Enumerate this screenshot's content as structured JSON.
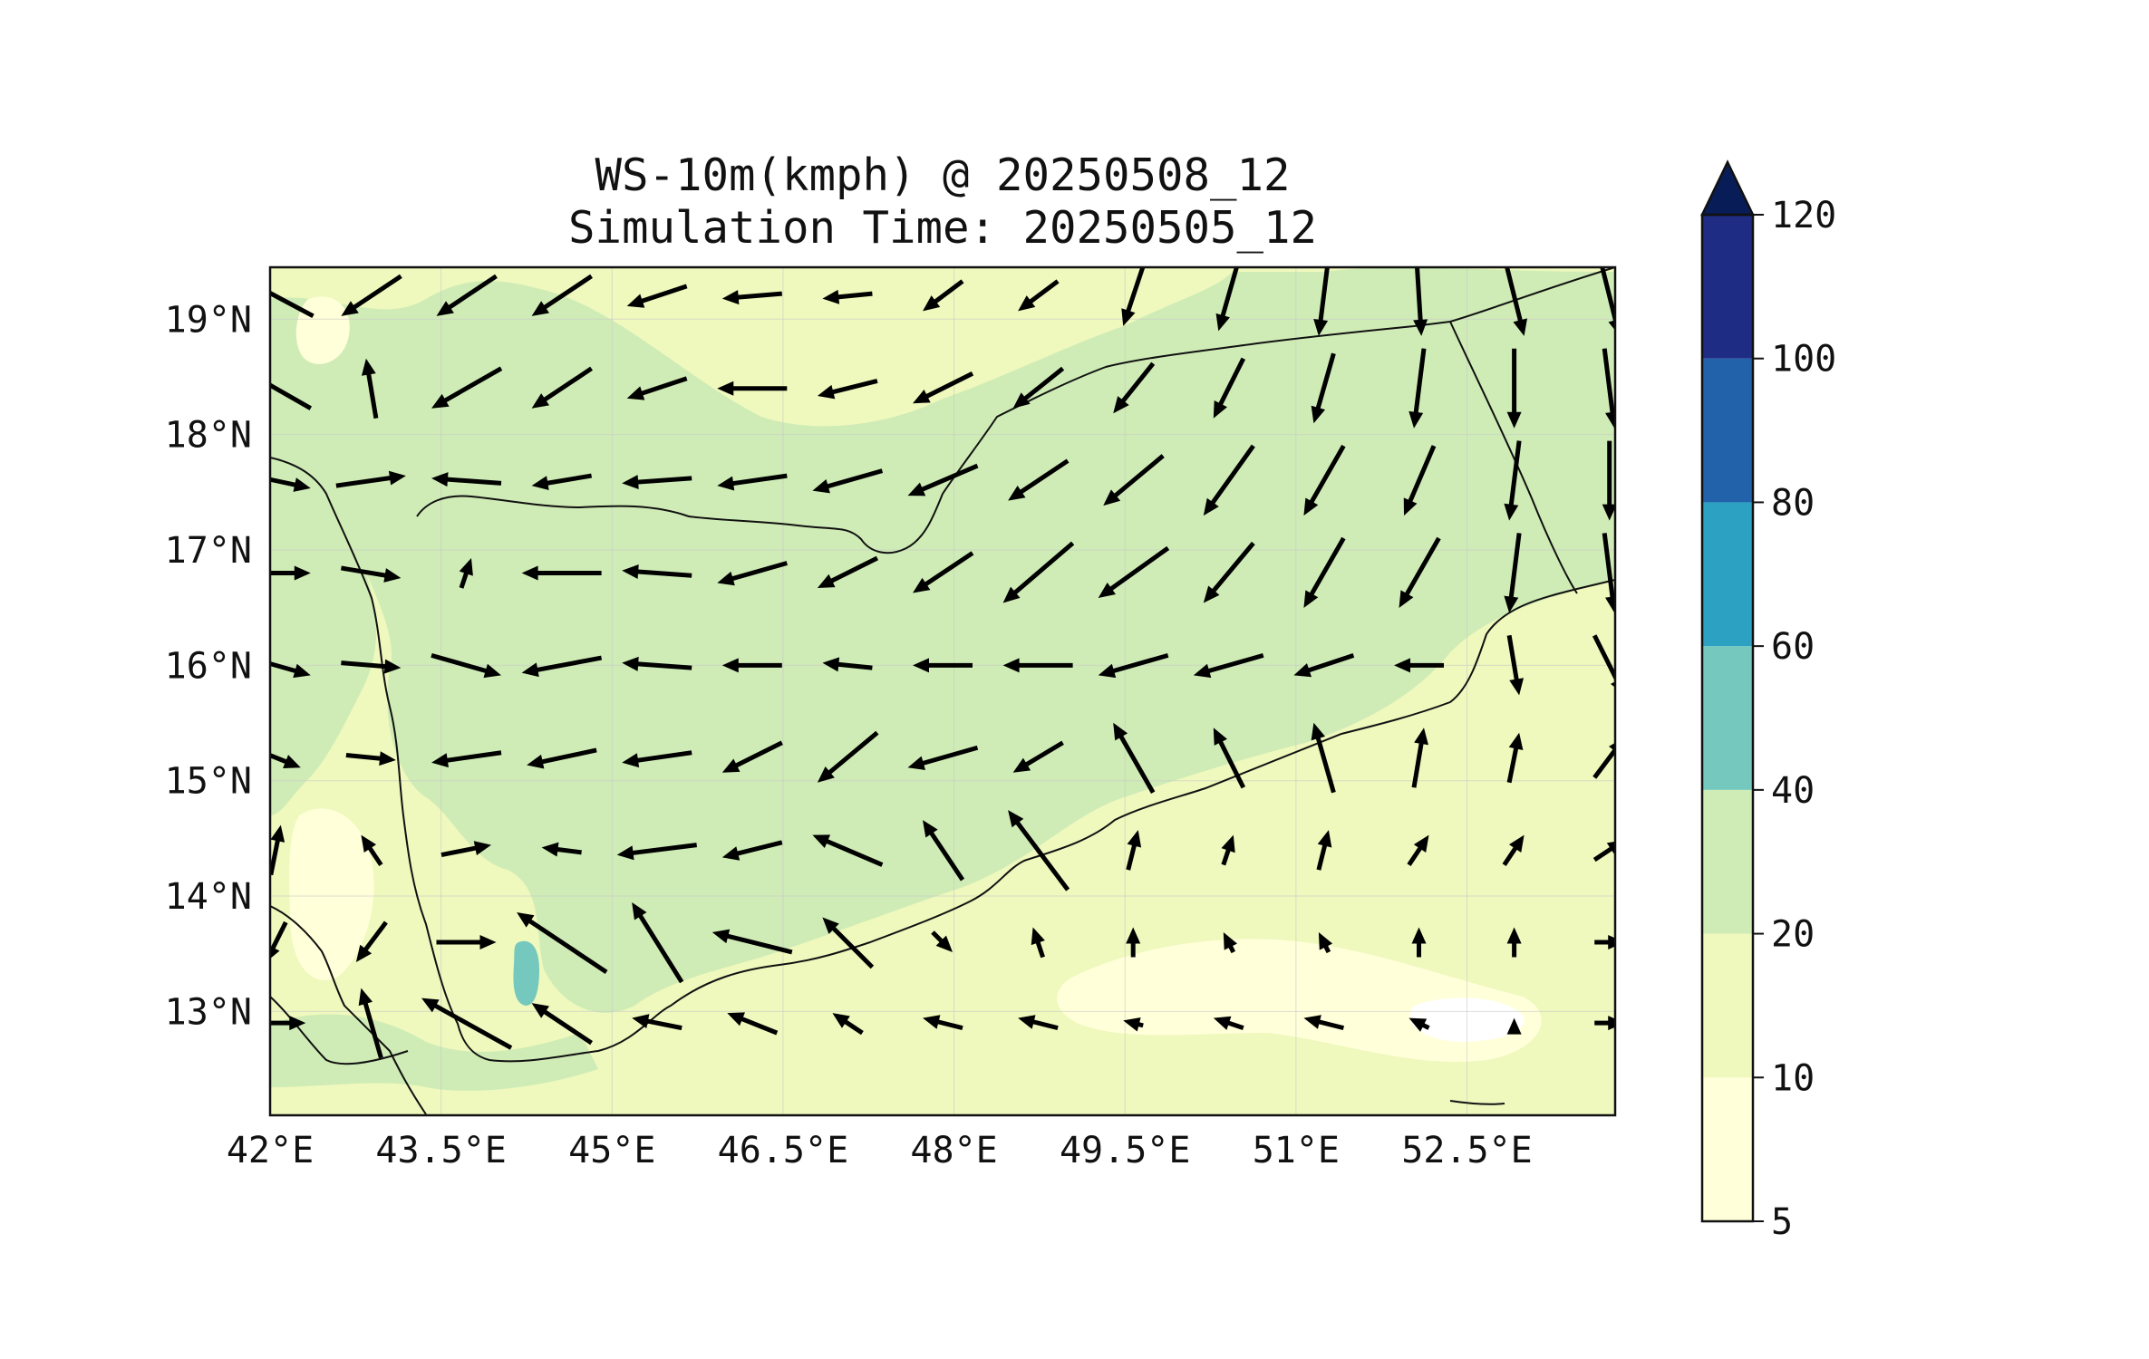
{
  "title": {
    "line1": "WS-10m(kmph) @ 20250508_12",
    "line2": "Simulation Time: 20250505_12"
  },
  "map": {
    "lon_range": [
      42.0,
      53.8
    ],
    "lat_range": [
      12.1,
      19.45
    ],
    "x_ticks": [
      {
        "value": 42.0,
        "label": "42°E"
      },
      {
        "value": 43.5,
        "label": "43.5°E"
      },
      {
        "value": 45.0,
        "label": "45°E"
      },
      {
        "value": 46.5,
        "label": "46.5°E"
      },
      {
        "value": 48.0,
        "label": "48°E"
      },
      {
        "value": 49.5,
        "label": "49.5°E"
      },
      {
        "value": 51.0,
        "label": "51°E"
      },
      {
        "value": 52.5,
        "label": "52.5°E"
      }
    ],
    "y_ticks": [
      {
        "value": 19,
        "label": "19°N"
      },
      {
        "value": 18,
        "label": "18°N"
      },
      {
        "value": 17,
        "label": "17°N"
      },
      {
        "value": 16,
        "label": "16°N"
      },
      {
        "value": 15,
        "label": "15°N"
      },
      {
        "value": 14,
        "label": "14°N"
      },
      {
        "value": 13,
        "label": "13°N"
      }
    ],
    "background_color": "#eff8bd",
    "grid": true
  },
  "colorbar": {
    "extend": "max",
    "levels": [
      {
        "value": 5,
        "label": "5"
      },
      {
        "value": 10,
        "label": "10"
      },
      {
        "value": 20,
        "label": "20"
      },
      {
        "value": 40,
        "label": "40"
      },
      {
        "value": 60,
        "label": "60"
      },
      {
        "value": 80,
        "label": "80"
      },
      {
        "value": 100,
        "label": "100"
      },
      {
        "value": 120,
        "label": "120"
      }
    ],
    "colors": [
      "#ffffd9",
      "#eff8bd",
      "#cfecb6",
      "#75c8bd",
      "#2ca1c1",
      "#2162aa",
      "#1e2c84"
    ],
    "over_color": "#081d58"
  },
  "chart_data": {
    "type": "heatmap",
    "variable": "WS-10m(kmph)",
    "wind_vectors_u_v_kmph": [
      {
        "lat": 19.2,
        "winds": [
          [
            -15,
            8
          ],
          [
            -12,
            -8
          ],
          [
            -12,
            -8
          ],
          [
            -12,
            -8
          ],
          [
            -12,
            -4
          ],
          [
            -12,
            -1
          ],
          [
            -10,
            -1
          ],
          [
            -8,
            -6
          ],
          [
            -8,
            -6
          ],
          [
            -4,
            -12
          ],
          [
            -4,
            -14
          ],
          [
            -2,
            -16
          ],
          [
            1,
            -16
          ],
          [
            4,
            -16
          ],
          [
            4,
            -16
          ]
        ]
      },
      {
        "lat": 18.4,
        "winds": [
          [
            -14,
            8
          ],
          [
            -2,
            12
          ],
          [
            -14,
            -8
          ],
          [
            -12,
            -8
          ],
          [
            -12,
            -4
          ],
          [
            -14,
            0
          ],
          [
            -12,
            -3
          ],
          [
            -12,
            -6
          ],
          [
            -10,
            -8
          ],
          [
            -8,
            -10
          ],
          [
            -6,
            -12
          ],
          [
            -4,
            -14
          ],
          [
            -2,
            -16
          ],
          [
            0,
            -16
          ],
          [
            2,
            -16
          ]
        ]
      },
      {
        "lat": 17.6,
        "winds": [
          [
            14,
            -3
          ],
          [
            14,
            2
          ],
          [
            -14,
            1
          ],
          [
            -12,
            -2
          ],
          [
            -14,
            -1
          ],
          [
            -14,
            -2
          ],
          [
            -14,
            -4
          ],
          [
            -14,
            -6
          ],
          [
            -12,
            -8
          ],
          [
            -12,
            -10
          ],
          [
            -10,
            -14
          ],
          [
            -8,
            -14
          ],
          [
            -6,
            -14
          ],
          [
            -2,
            -16
          ],
          [
            0,
            -16
          ]
        ]
      },
      {
        "lat": 16.8,
        "winds": [
          [
            14,
            0
          ],
          [
            12,
            -2
          ],
          [
            2,
            6
          ],
          [
            -16,
            0
          ],
          [
            -14,
            1
          ],
          [
            -14,
            -4
          ],
          [
            -12,
            -6
          ],
          [
            -12,
            -8
          ],
          [
            -14,
            -12
          ],
          [
            -14,
            -10
          ],
          [
            -10,
            -12
          ],
          [
            -8,
            -14
          ],
          [
            -8,
            -14
          ],
          [
            -2,
            -16
          ],
          [
            2,
            -16
          ]
        ]
      },
      {
        "lat": 16.0,
        "winds": [
          [
            14,
            -4
          ],
          [
            12,
            -1
          ],
          [
            14,
            -4
          ],
          [
            -16,
            -3
          ],
          [
            -14,
            1
          ],
          [
            -12,
            0
          ],
          [
            -10,
            1
          ],
          [
            -12,
            0
          ],
          [
            -14,
            0
          ],
          [
            -14,
            -4
          ],
          [
            -14,
            -4
          ],
          [
            -12,
            -4
          ],
          [
            -10,
            0
          ],
          [
            2,
            -12
          ],
          [
            6,
            -12
          ]
        ]
      },
      {
        "lat": 15.2,
        "winds": [
          [
            10,
            -4
          ],
          [
            10,
            -1
          ],
          [
            -14,
            -2
          ],
          [
            -14,
            -3
          ],
          [
            -14,
            -2
          ],
          [
            -12,
            -6
          ],
          [
            -12,
            -10
          ],
          [
            -14,
            -4
          ],
          [
            -10,
            -6
          ],
          [
            -8,
            14
          ],
          [
            -6,
            12
          ],
          [
            -4,
            14
          ],
          [
            2,
            12
          ],
          [
            2,
            10
          ],
          [
            6,
            8
          ]
        ]
      },
      {
        "lat": 14.4,
        "winds": [
          [
            2,
            10
          ],
          [
            -4,
            6
          ],
          [
            10,
            2
          ],
          [
            -8,
            1
          ],
          [
            -16,
            -2
          ],
          [
            -12,
            -3
          ],
          [
            -14,
            6
          ],
          [
            -8,
            12
          ],
          [
            -12,
            16
          ],
          [
            2,
            8
          ],
          [
            2,
            6
          ],
          [
            2,
            8
          ],
          [
            4,
            6
          ],
          [
            4,
            6
          ],
          [
            6,
            4
          ]
        ]
      },
      {
        "lat": 13.6,
        "winds": [
          [
            -4,
            -8
          ],
          [
            -6,
            -8
          ],
          [
            12,
            0
          ],
          [
            -18,
            12
          ],
          [
            -10,
            16
          ],
          [
            -16,
            4
          ],
          [
            -10,
            10
          ],
          [
            4,
            -4
          ],
          [
            -2,
            6
          ],
          [
            0,
            6
          ],
          [
            -2,
            4
          ],
          [
            -2,
            4
          ],
          [
            0,
            6
          ],
          [
            0,
            6
          ],
          [
            6,
            0
          ]
        ]
      },
      {
        "lat": 12.9,
        "winds": [
          [
            12,
            0
          ],
          [
            -4,
            14
          ],
          [
            -18,
            10
          ],
          [
            -12,
            8
          ],
          [
            -10,
            2
          ],
          [
            -10,
            4
          ],
          [
            -6,
            4
          ],
          [
            -8,
            2
          ],
          [
            -8,
            2
          ],
          [
            -4,
            1
          ],
          [
            -6,
            2
          ],
          [
            -8,
            2
          ],
          [
            -4,
            2
          ],
          [
            0,
            2
          ],
          [
            6,
            0
          ]
        ]
      }
    ],
    "max_speed_class": "40-60"
  }
}
